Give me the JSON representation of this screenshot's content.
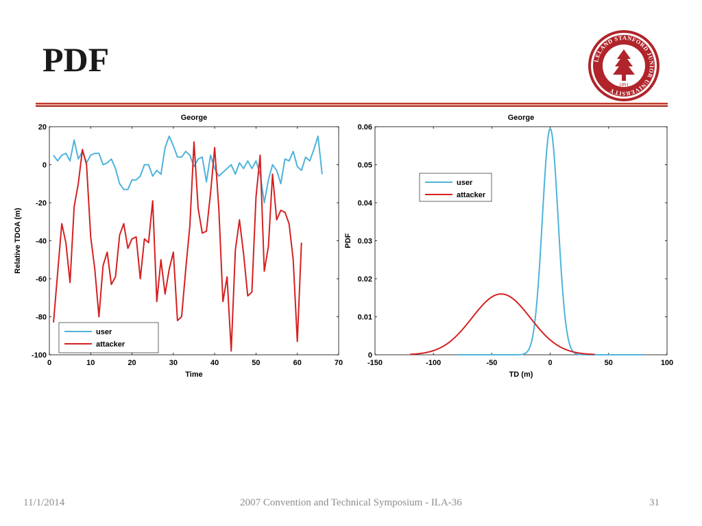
{
  "slide": {
    "title": "PDF"
  },
  "footer": {
    "date": "11/1/2014",
    "center": "2007 Convention and Technical Symposium - ILA-36",
    "page": "31"
  },
  "seal": {
    "text": "LELAND STANFORD JUNIOR UNIVERSITY",
    "year": "1891"
  },
  "colors": {
    "user": "#4db3db",
    "attacker": "#d42020",
    "rule": "#c0392b",
    "seal": "#b0242a"
  },
  "chart_data": [
    {
      "type": "line",
      "title": "George",
      "xlabel": "Time",
      "ylabel": "Relative TDOA (m)",
      "xlim": [
        0,
        70
      ],
      "ylim": [
        -100,
        20
      ],
      "xticks": [
        0,
        10,
        20,
        30,
        40,
        50,
        60,
        70
      ],
      "yticks": [
        -100,
        -80,
        -60,
        -40,
        -20,
        0,
        20
      ],
      "legend": {
        "position": "bottom-left",
        "entries": [
          "user",
          "attacker"
        ]
      },
      "series": [
        {
          "name": "user",
          "color": "#4db3db",
          "x": [
            1,
            2,
            3,
            4,
            5,
            6,
            7,
            8,
            9,
            10,
            11,
            12,
            13,
            14,
            15,
            16,
            17,
            18,
            19,
            20,
            21,
            22,
            23,
            24,
            25,
            26,
            27,
            28,
            29,
            30,
            31,
            32,
            33,
            34,
            35,
            36,
            37,
            38,
            39,
            40,
            41,
            42,
            43,
            44,
            45,
            46,
            47,
            48,
            49,
            50,
            51,
            52,
            53,
            54,
            55,
            56,
            57,
            58,
            59,
            60,
            61,
            62,
            63,
            64,
            65,
            66
          ],
          "y": [
            5,
            2,
            5,
            6,
            2,
            13,
            3,
            7,
            1,
            5,
            6,
            6,
            0,
            1,
            3,
            -2,
            -10,
            -13,
            -13,
            -8,
            -8,
            -6,
            0,
            0,
            -6,
            -3,
            -5,
            9,
            15,
            10,
            4,
            4,
            7,
            5,
            -1,
            3,
            4,
            -9,
            5,
            -2,
            -6,
            -4,
            -2,
            0,
            -5,
            1,
            -2,
            2,
            -2,
            2,
            -5,
            -20,
            -8,
            0,
            -3,
            -10,
            3,
            2,
            7,
            -1,
            -3,
            4,
            2,
            8,
            15,
            -5
          ]
        },
        {
          "name": "attacker",
          "color": "#d42020",
          "x": [
            1,
            2,
            3,
            4,
            5,
            6,
            7,
            8,
            9,
            10,
            11,
            12,
            13,
            14,
            15,
            16,
            17,
            18,
            19,
            20,
            21,
            22,
            23,
            24,
            25,
            26,
            27,
            28,
            29,
            30,
            31,
            32,
            33,
            34,
            35,
            36,
            37,
            38,
            39,
            40,
            41,
            42,
            43,
            44,
            45,
            46,
            47,
            48,
            49,
            50,
            51,
            52,
            53,
            54,
            55,
            56,
            57,
            58,
            59,
            60,
            61
          ],
          "y": [
            -83,
            -57,
            -31,
            -41,
            -62,
            -22,
            -10,
            8,
            0,
            -38,
            -55,
            -80,
            -53,
            -46,
            -63,
            -59,
            -37,
            -31,
            -44,
            -39,
            -38,
            -60,
            -39,
            -41,
            -19,
            -72,
            -50,
            -68,
            -55,
            -46,
            -82,
            -80,
            -55,
            -32,
            12,
            -23,
            -36,
            -35,
            -15,
            9,
            -23,
            -72,
            -59,
            -98,
            -45,
            -29,
            -47,
            -69,
            -67,
            -17,
            5,
            -56,
            -43,
            -5,
            -29,
            -24,
            -25,
            -31,
            -50,
            -93,
            -41
          ]
        }
      ]
    },
    {
      "type": "line",
      "title": "George",
      "xlabel": "TD (m)",
      "ylabel": "PDF",
      "xlim": [
        -150,
        100
      ],
      "ylim": [
        0,
        0.06
      ],
      "xticks": [
        -150,
        -100,
        -50,
        0,
        50,
        100
      ],
      "yticks": [
        0,
        0.01,
        0.02,
        0.03,
        0.04,
        0.05,
        0.06
      ],
      "legend": {
        "position": "top-center",
        "entries": [
          "user",
          "attacker"
        ]
      },
      "series": [
        {
          "name": "user",
          "color": "#4db3db",
          "distribution": "gaussian",
          "mean": 0,
          "std": 6.7,
          "peak": 0.0595,
          "x_range": [
            -80,
            80
          ]
        },
        {
          "name": "attacker",
          "color": "#d42020",
          "distribution": "gaussian",
          "mean": -42,
          "std": 25,
          "peak": 0.016,
          "x_range": [
            -120,
            38
          ]
        }
      ]
    }
  ]
}
